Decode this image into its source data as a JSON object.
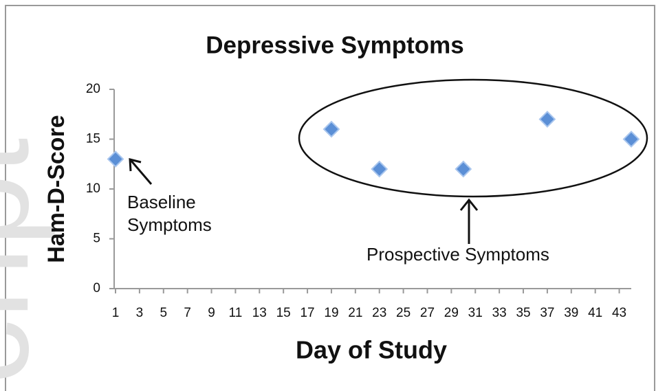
{
  "chart_data": {
    "type": "scatter",
    "title": "Depressive Symptoms",
    "xlabel": "Day of Study",
    "ylabel": "Ham-D-Score",
    "x": [
      1,
      19,
      23,
      30,
      37,
      44
    ],
    "values": [
      13,
      16,
      12,
      12,
      17,
      15
    ],
    "color": "#5b8fd6",
    "xlim": [
      1,
      44
    ],
    "xticks": [
      1,
      3,
      5,
      7,
      9,
      11,
      13,
      15,
      17,
      19,
      21,
      23,
      25,
      27,
      29,
      31,
      33,
      35,
      37,
      39,
      41,
      43
    ],
    "ylim": [
      0,
      20
    ],
    "yticks": [
      0,
      5,
      10,
      15,
      20
    ],
    "annotations": [
      {
        "lines": [
          "Baseline",
          "Symptoms"
        ]
      },
      {
        "lines": [
          "Prospective Symptoms"
        ]
      }
    ],
    "watermark": "cript"
  }
}
